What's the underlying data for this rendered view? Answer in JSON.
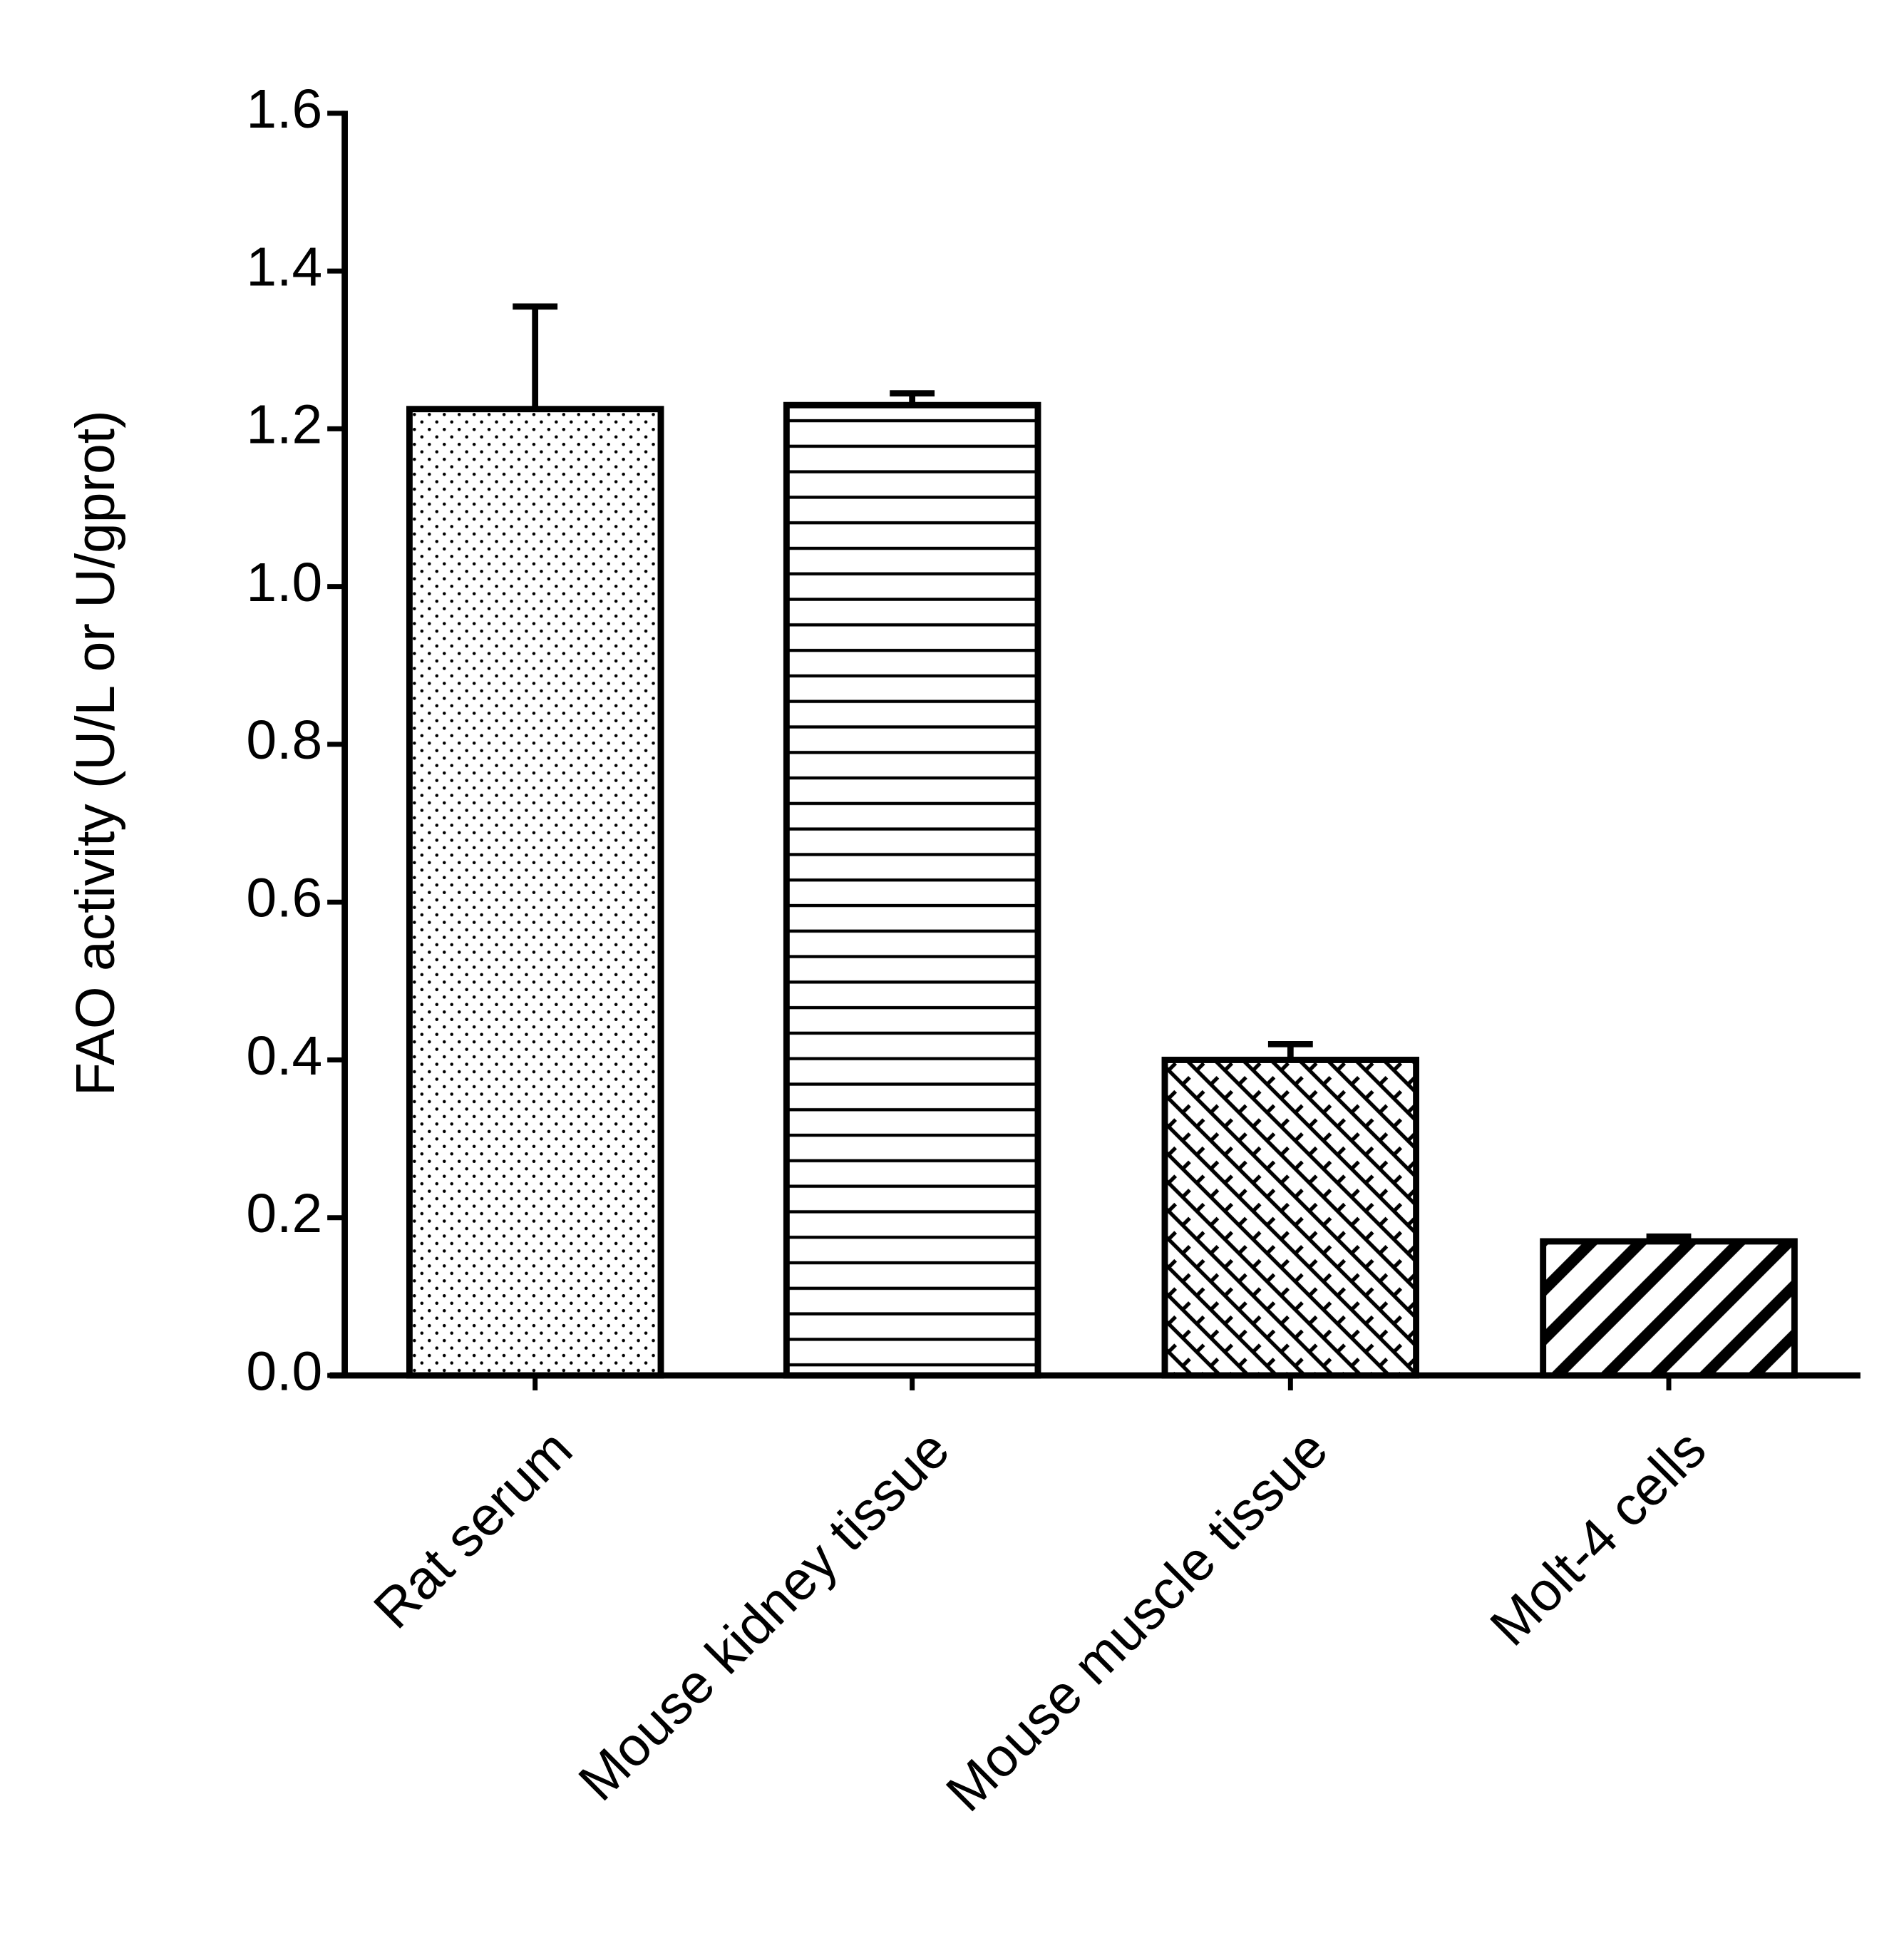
{
  "chart_data": {
    "type": "bar",
    "y_label": "FAO activity (U/L or U/gprot)",
    "categories": [
      "Rat serum",
      "Mouse kidney tissue",
      "Mouse muscle tissue",
      "Molt-4 cells"
    ],
    "values": [
      1.225,
      1.23,
      0.4,
      0.17
    ],
    "errors": [
      0.13,
      0.015,
      0.02,
      0.006
    ],
    "patterns": [
      "dots",
      "horizontal",
      "crosshatch",
      "diagonal"
    ],
    "color": "#000000",
    "ylim": [
      0,
      1.6
    ],
    "yticks": [
      {
        "value": 0,
        "label": "0.0"
      },
      0.2,
      0.4,
      0.6,
      0.8,
      {
        "value": 1,
        "label": "1.0"
      },
      1.2,
      1.4,
      1.6
    ],
    "grid": false
  }
}
